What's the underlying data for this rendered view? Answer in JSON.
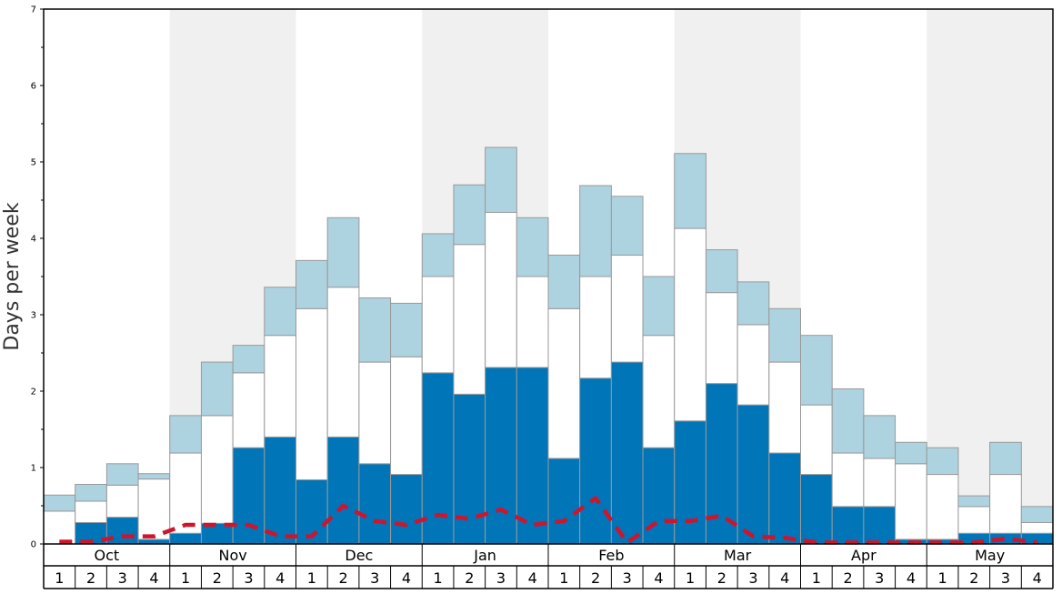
{
  "chart_data": {
    "type": "bar",
    "stacked": true,
    "ylabel": "Days per week",
    "ylim": [
      0,
      7
    ],
    "yticks": [
      0,
      1,
      2,
      3,
      4,
      5,
      6,
      7
    ],
    "months": [
      "Oct",
      "Nov",
      "Dec",
      "Jan",
      "Feb",
      "Mar",
      "Apr",
      "May"
    ],
    "weeks": [
      "1",
      "2",
      "3",
      "4"
    ],
    "shaded_months": [
      "Nov",
      "Jan",
      "Mar",
      "May"
    ],
    "colors": {
      "dark": "#0075b8",
      "white": "#ffffff",
      "light": "#aed3e0",
      "shade": "#f0f0f0",
      "line": "#d0142c",
      "bar_stroke": "#999999"
    },
    "series": [
      {
        "values": [
          0.0,
          0.28,
          0.35,
          0.06,
          0.14,
          0.27,
          1.26,
          1.4,
          0.84,
          1.4,
          1.05,
          0.91,
          2.24,
          1.96,
          2.31,
          2.31,
          1.12,
          2.17,
          2.38,
          1.26,
          1.61,
          2.1,
          1.82,
          1.19,
          0.91,
          0.49,
          0.49,
          0.06,
          0.06,
          0.14,
          0.14,
          0.14
        ]
      },
      {
        "values": [
          0.43,
          0.28,
          0.42,
          0.79,
          1.05,
          1.41,
          0.98,
          1.33,
          2.24,
          1.96,
          1.33,
          1.54,
          1.26,
          1.96,
          2.03,
          1.19,
          1.96,
          1.33,
          1.4,
          1.47,
          2.52,
          1.19,
          1.05,
          1.19,
          0.91,
          0.7,
          0.63,
          0.99,
          0.85,
          0.35,
          0.77,
          0.14
        ]
      },
      {
        "values": [
          0.21,
          0.22,
          0.28,
          0.07,
          0.49,
          0.7,
          0.36,
          0.63,
          0.63,
          0.91,
          0.84,
          0.7,
          0.56,
          0.78,
          0.85,
          0.77,
          0.7,
          1.19,
          0.77,
          0.77,
          0.98,
          0.56,
          0.56,
          0.7,
          0.91,
          0.84,
          0.56,
          0.28,
          0.35,
          0.14,
          0.42,
          0.21
        ]
      }
    ],
    "line": {
      "values": [
        0.03,
        0.03,
        0.1,
        0.1,
        0.25,
        0.25,
        0.25,
        0.1,
        0.1,
        0.5,
        0.3,
        0.25,
        0.38,
        0.33,
        0.45,
        0.25,
        0.3,
        0.6,
        0.02,
        0.3,
        0.3,
        0.37,
        0.1,
        0.08,
        0.02,
        0.02,
        0.02,
        0.02,
        0.02,
        0.02,
        0.07,
        0.02
      ]
    }
  }
}
